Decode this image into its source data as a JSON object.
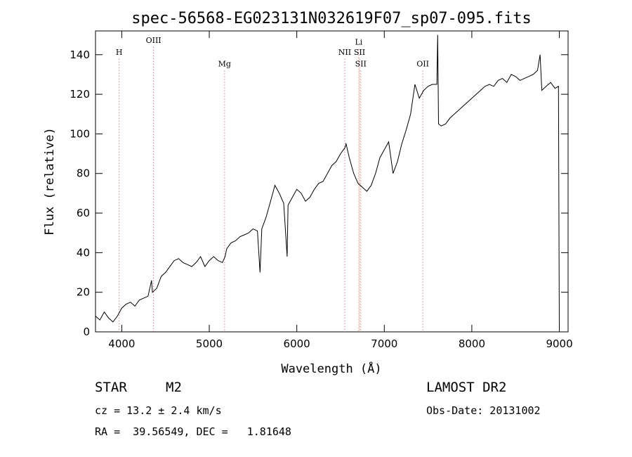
{
  "chart_data": {
    "type": "line",
    "title": "spec-56568-EG023131N032619F07_sp07-095.fits",
    "xlabel": "Wavelength (Å)",
    "ylabel": "Flux (relative)",
    "xlim": [
      3700,
      9100
    ],
    "ylim": [
      0,
      152
    ],
    "xticks": [
      4000,
      5000,
      6000,
      7000,
      8000,
      9000
    ],
    "yticks": [
      0,
      20,
      40,
      60,
      80,
      100,
      120,
      140
    ],
    "grid": false,
    "series": [
      {
        "color": "#000000",
        "x": [
          3700,
          3750,
          3800,
          3850,
          3900,
          3950,
          4000,
          4050,
          4100,
          4150,
          4200,
          4250,
          4300,
          4340,
          4350,
          4400,
          4450,
          4500,
          4550,
          4600,
          4650,
          4700,
          4750,
          4800,
          4850,
          4900,
          4950,
          5000,
          5050,
          5100,
          5150,
          5180,
          5200,
          5250,
          5300,
          5350,
          5400,
          5450,
          5500,
          5550,
          5580,
          5600,
          5650,
          5700,
          5750,
          5800,
          5850,
          5890,
          5900,
          5950,
          6000,
          6050,
          6100,
          6150,
          6200,
          6250,
          6300,
          6350,
          6400,
          6450,
          6500,
          6550,
          6563,
          6600,
          6650,
          6700,
          6750,
          6800,
          6850,
          6900,
          6950,
          7000,
          7050,
          7100,
          7150,
          7200,
          7250,
          7300,
          7350,
          7400,
          7450,
          7500,
          7550,
          7600,
          7610,
          7620,
          7650,
          7700,
          7750,
          7800,
          7850,
          7900,
          7950,
          8000,
          8050,
          8100,
          8150,
          8200,
          8250,
          8300,
          8350,
          8400,
          8450,
          8500,
          8550,
          8600,
          8650,
          8700,
          8750,
          8780,
          8800,
          8850,
          8900,
          8950,
          8990,
          9000
        ],
        "values": [
          8,
          6,
          10,
          7,
          5,
          8,
          12,
          14,
          15,
          13,
          16,
          17,
          18,
          26,
          20,
          22,
          28,
          30,
          33,
          36,
          37,
          35,
          34,
          33,
          35,
          38,
          33,
          36,
          38,
          36,
          35,
          38,
          42,
          45,
          46,
          48,
          49,
          50,
          52,
          51,
          30,
          52,
          58,
          66,
          74,
          70,
          65,
          38,
          64,
          68,
          72,
          70,
          66,
          68,
          72,
          75,
          76,
          80,
          84,
          86,
          90,
          93,
          95,
          88,
          80,
          75,
          73,
          71,
          74,
          80,
          88,
          92,
          96,
          80,
          86,
          95,
          102,
          110,
          125,
          118,
          122,
          124,
          125,
          125,
          150,
          105,
          104,
          105,
          108,
          110,
          112,
          114,
          116,
          118,
          120,
          122,
          124,
          125,
          124,
          127,
          128,
          126,
          130,
          129,
          127,
          128,
          129,
          130,
          132,
          140,
          122,
          124,
          126,
          123,
          124,
          0
        ]
      }
    ],
    "annotations": [
      {
        "label": "H",
        "x": 3970,
        "line_color": "#d04040",
        "label_y": 140
      },
      {
        "label": "OIII",
        "x": 4363,
        "line_color": "#d04040",
        "label_y": 146
      },
      {
        "label": "Mg",
        "x": 5175,
        "line_color": "#d04040",
        "label_y": 134
      },
      {
        "label": "NII",
        "x": 6548,
        "line_color": "#d04040",
        "label_y": 140
      },
      {
        "label": "Li",
        "x": 6708,
        "line_color": "#d04040",
        "label_y": 145
      },
      {
        "label": "SII",
        "x": 6717,
        "line_color": "#d04040",
        "label_y": 140
      },
      {
        "label": "SII",
        "x": 6731,
        "line_color": "#d04040",
        "label_y": 134
      },
      {
        "label": "OII",
        "x": 7440,
        "line_color": "#d04040",
        "label_y": 134
      }
    ]
  },
  "info": {
    "object_class": "STAR",
    "subclass": "M2",
    "survey": "LAMOST DR2",
    "cz": "cz = 13.2 ± 2.4 km/s",
    "obs_date": "Obs-Date: 20131002",
    "radec": "RA =  39.56549, DEC =   1.81648"
  }
}
